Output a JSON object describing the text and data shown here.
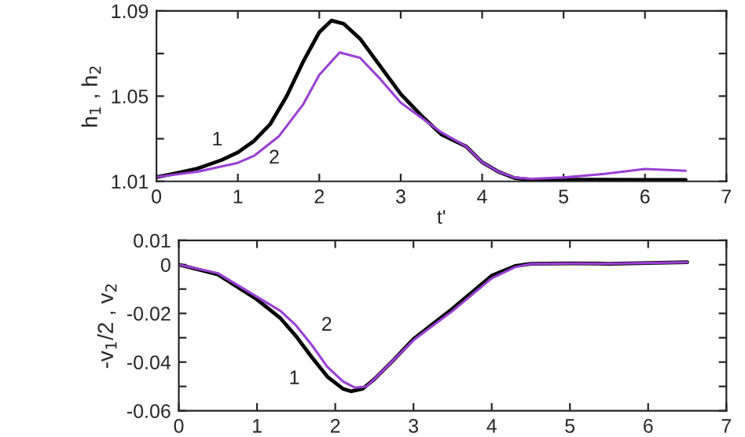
{
  "chart_data": [
    {
      "type": "line",
      "xlabel": "t'",
      "ylabel": "h$_{1}$ , h$_{2}$",
      "xlim": [
        0,
        7
      ],
      "xticks": [
        0,
        1,
        2,
        3,
        4,
        5,
        6,
        7
      ],
      "ylim": [
        1.01,
        1.09
      ],
      "yticks": [
        1.01,
        {
          "value": 1.03,
          "label": null
        },
        1.05,
        {
          "value": 1.07,
          "label": null
        },
        1.09
      ],
      "grid": false,
      "legend": false,
      "marker": "none",
      "line_style": "solid",
      "series": [
        {
          "color": "#000000",
          "x": [
            0,
            0.2,
            0.5,
            0.8,
            1.0,
            1.2,
            1.4,
            1.6,
            1.8,
            2.0,
            2.15,
            2.3,
            2.5,
            2.75,
            3.0,
            3.25,
            3.5,
            3.8,
            4.0,
            4.2,
            4.4,
            4.6,
            5.0,
            5.5,
            6.0,
            6.5
          ],
          "values": [
            1.012,
            1.0135,
            1.016,
            1.02,
            1.0236,
            1.029,
            1.037,
            1.05,
            1.066,
            1.08,
            1.0855,
            1.084,
            1.077,
            1.064,
            1.051,
            1.041,
            1.032,
            1.0265,
            1.019,
            1.0145,
            1.0115,
            1.0108,
            1.0108,
            1.0108,
            1.0107,
            1.0107
          ]
        },
        {
          "color": "#9b3fd6",
          "x": [
            0,
            0.2,
            0.5,
            0.8,
            1.0,
            1.2,
            1.5,
            1.8,
            2.0,
            2.25,
            2.5,
            2.75,
            3.0,
            3.25,
            3.5,
            3.8,
            4.0,
            4.2,
            4.4,
            4.6,
            5.0,
            5.5,
            6.0,
            6.5
          ],
          "values": [
            1.012,
            1.013,
            1.0145,
            1.017,
            1.0187,
            1.022,
            1.031,
            1.046,
            1.06,
            1.0705,
            1.068,
            1.058,
            1.047,
            1.04,
            1.033,
            1.0265,
            1.019,
            1.0145,
            1.0118,
            1.0112,
            1.0118,
            1.0135,
            1.0158,
            1.015
          ]
        }
      ],
      "annotations": [
        "1",
        "2"
      ]
    },
    {
      "type": "line",
      "ylabel": "-v$_{1}$/2 , v$_{2}$",
      "xlim": [
        0,
        7
      ],
      "xticks": [
        0,
        1,
        2,
        3,
        4,
        5,
        6,
        7
      ],
      "ylim": [
        -0.06,
        0.01
      ],
      "yticks": [
        -0.06,
        {
          "value": -0.05,
          "label": null
        },
        -0.04,
        {
          "value": -0.03,
          "label": null
        },
        -0.02,
        {
          "value": -0.01,
          "label": null
        },
        0,
        0.01
      ],
      "grid": false,
      "legend": false,
      "marker": "none",
      "line_style": "solid",
      "series": [
        {
          "color": "#000000",
          "x": [
            0,
            0.5,
            1.0,
            1.3,
            1.5,
            1.7,
            1.9,
            2.1,
            2.2,
            2.35,
            2.5,
            2.75,
            3.0,
            3.5,
            4.0,
            4.3,
            4.5,
            5.0,
            5.5,
            6.0,
            6.5
          ],
          "values": [
            0,
            -0.004,
            -0.0143,
            -0.022,
            -0.0294,
            -0.038,
            -0.046,
            -0.051,
            -0.052,
            -0.051,
            -0.047,
            -0.039,
            -0.0305,
            -0.018,
            -0.0045,
            -0.0005,
            0.0004,
            0.0005,
            0.0004,
            0.0007,
            0.001
          ]
        },
        {
          "color": "#9b3fd6",
          "x": [
            0,
            0.5,
            1.0,
            1.3,
            1.5,
            1.7,
            1.9,
            2.1,
            2.25,
            2.4,
            2.5,
            2.75,
            3.0,
            3.5,
            4.0,
            4.3,
            4.5,
            5.0,
            5.5,
            6.0,
            6.5
          ],
          "values": [
            0,
            -0.0035,
            -0.0132,
            -0.019,
            -0.025,
            -0.033,
            -0.042,
            -0.048,
            -0.0505,
            -0.05,
            -0.047,
            -0.039,
            -0.031,
            -0.019,
            -0.0056,
            -0.001,
            0.0003,
            0.0005,
            0.0004,
            0.0007,
            0.001
          ]
        }
      ],
      "annotations": [
        "2",
        "1"
      ]
    }
  ]
}
